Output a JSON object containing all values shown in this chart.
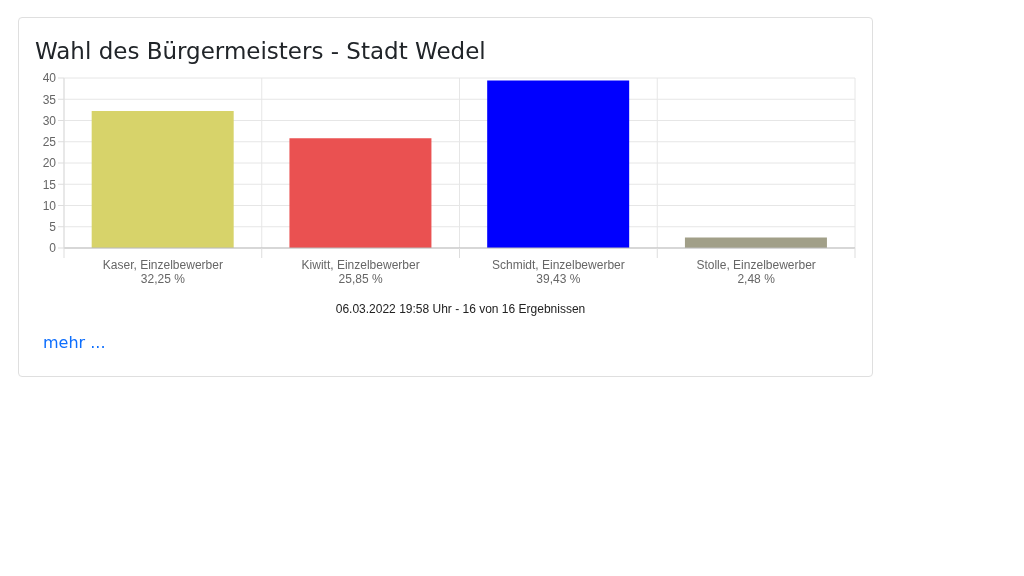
{
  "chart_data": {
    "type": "bar",
    "title": "Wahl des Bürgermeisters - Stadt Wedel",
    "categories": [
      "Kaser, Einzelbewerber",
      "Kiwitt, Einzelbewerber",
      "Schmidt, Einzelbewerber",
      "Stolle, Einzelbewerber"
    ],
    "values": [
      32.25,
      25.85,
      39.43,
      2.48
    ],
    "value_labels": [
      "32,25 %",
      "25,85 %",
      "39,43 %",
      "2,48 %"
    ],
    "colors": [
      "#d7d36a",
      "#ea5151",
      "#0000ff",
      "#a19f88"
    ],
    "ylim": [
      0,
      40
    ],
    "yticks": [
      0,
      5,
      10,
      15,
      20,
      25,
      30,
      35,
      40
    ],
    "grid": true,
    "annotations": [
      "06.03.2022 19:58 Uhr - 16 von 16 Ergebnissen",
      "mehr ..."
    ]
  }
}
